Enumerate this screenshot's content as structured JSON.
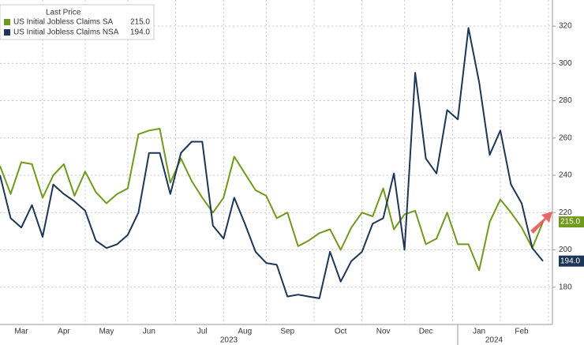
{
  "chart_data": {
    "type": "line",
    "legend_title": "Last Price",
    "categories": [
      null,
      null,
      "Mar",
      null,
      null,
      null,
      "Apr",
      null,
      null,
      null,
      "May",
      null,
      null,
      null,
      "Jun",
      null,
      null,
      null,
      null,
      "Jul",
      null,
      null,
      null,
      "Aug",
      null,
      null,
      null,
      "Sep",
      null,
      null,
      null,
      null,
      "Oct",
      null,
      null,
      null,
      "Nov",
      null,
      null,
      null,
      "Dec",
      null,
      null,
      null,
      null,
      "Jan",
      null,
      null,
      null,
      "Feb",
      null,
      null
    ],
    "year_labels": [
      "2023",
      "2024"
    ],
    "series": [
      {
        "name": "US Initial Jobless Claims SA",
        "color": "#6f9a1e",
        "last_label": "215.0",
        "values": [
          245,
          230,
          247,
          246,
          228,
          240,
          246,
          229,
          242,
          231,
          225,
          230,
          233,
          262,
          264,
          265,
          236,
          249,
          237,
          228,
          220,
          228,
          250,
          241,
          232,
          229,
          217,
          220,
          202,
          205,
          209,
          211,
          200,
          212,
          220,
          218,
          233,
          211,
          219,
          221,
          203,
          206,
          220,
          203,
          203,
          189,
          215,
          227,
          220,
          212,
          201,
          215
        ]
      },
      {
        "name": "US Initial Jobless Claims NSA",
        "color": "#1c3657",
        "last_label": "194.0",
        "values": [
          240,
          217,
          212,
          224,
          207,
          235,
          230,
          226,
          221,
          205,
          201,
          203,
          208,
          220,
          252,
          252,
          230,
          252,
          258,
          258,
          213,
          206,
          228,
          214,
          199,
          193,
          192,
          175,
          176,
          175,
          174,
          199,
          183,
          194,
          199,
          214,
          217,
          241,
          200,
          295,
          249,
          241,
          275,
          270,
          319,
          290,
          251,
          264,
          235,
          225,
          201,
          194
        ]
      }
    ],
    "ylim": [
      160,
      334
    ],
    "yticks": [
      180,
      200,
      220,
      240,
      260,
      280,
      300,
      320
    ],
    "axis_side": "right",
    "grid": true
  }
}
